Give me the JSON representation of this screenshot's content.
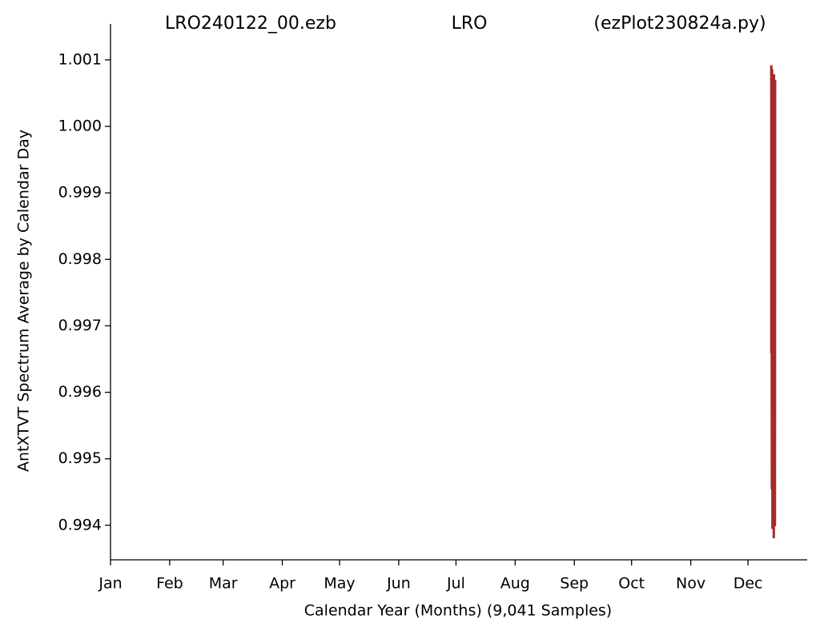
{
  "chart_data": {
    "type": "line",
    "title": [
      "LRO240122_00.ezb",
      "LRO",
      "(ezPlot230824a.py)"
    ],
    "x_label": "Calendar Year (Months) (9,041 Samples)",
    "y_label": "AntXTVT Spectrum Average by Calendar Day",
    "x": [
      346.2,
      346.2,
      346.3,
      346.5,
      346.6,
      346.8,
      347.0,
      347.1,
      347.3,
      347.5,
      347.6,
      347.8,
      347.9,
      348.1,
      348.2
    ],
    "series": [
      {
        "name": "AntXTVT",
        "color": "#a52a2a",
        "values": [
          1.00092,
          0.9966,
          1.0006,
          0.99455,
          1.00085,
          0.99396,
          1.0007,
          0.9952,
          1.0004,
          0.99382,
          1.00077,
          0.9974,
          0.9998,
          0.994,
          1.0007
        ]
      }
    ],
    "xlim": [
      0,
      365
    ],
    "ylim": [
      0.99348,
      1.00154
    ],
    "xticks": [
      {
        "value": 0,
        "label": "Jan"
      },
      {
        "value": 31,
        "label": "Feb"
      },
      {
        "value": 59,
        "label": "Mar"
      },
      {
        "value": 90,
        "label": "Apr"
      },
      {
        "value": 120,
        "label": "May"
      },
      {
        "value": 151,
        "label": "Jun"
      },
      {
        "value": 181,
        "label": "Jul"
      },
      {
        "value": 212,
        "label": "Aug"
      },
      {
        "value": 243,
        "label": "Sep"
      },
      {
        "value": 273,
        "label": "Oct"
      },
      {
        "value": 304,
        "label": "Nov"
      },
      {
        "value": 334,
        "label": "Dec"
      }
    ],
    "yticks": [
      0.994,
      0.995,
      0.996,
      0.997,
      0.998,
      0.999,
      {
        "value": 1.0,
        "label": "1.000"
      },
      1.001
    ],
    "grid": false
  }
}
